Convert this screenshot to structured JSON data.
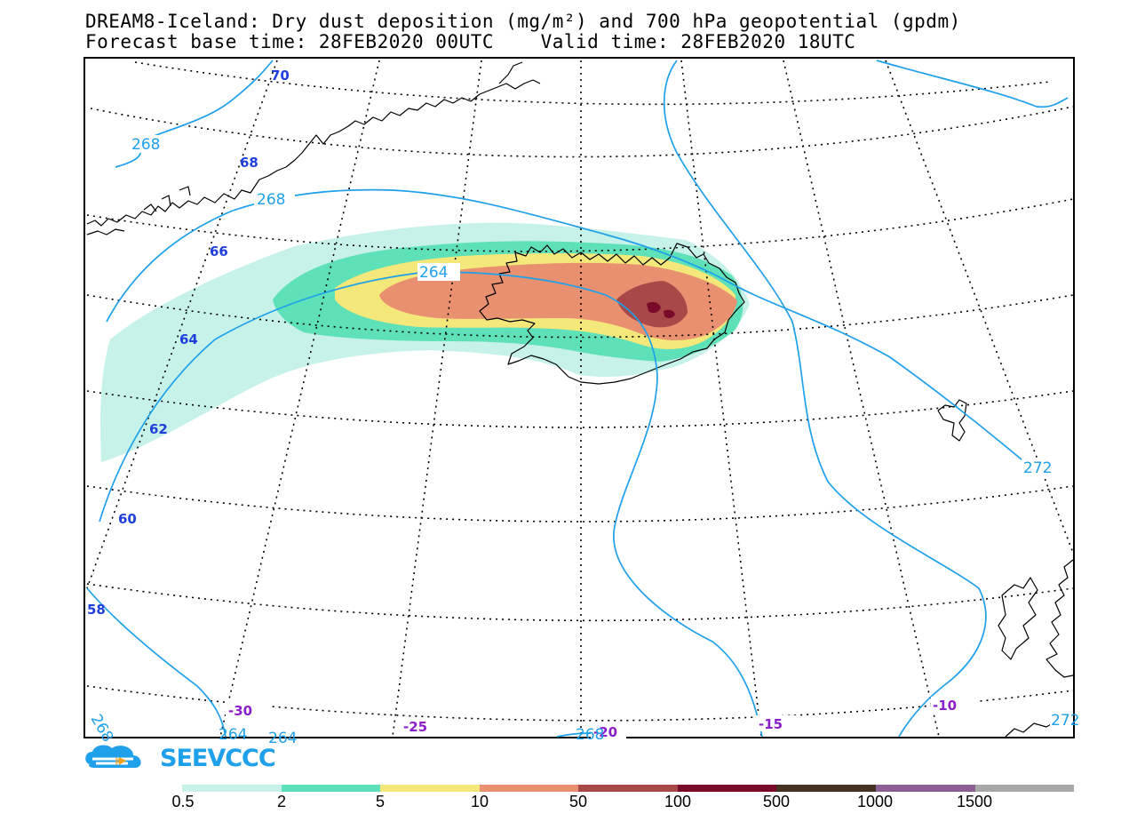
{
  "header": {
    "title_line1": "DREAM8-Iceland: Dry dust deposition (mg/m²) and 700 hPa geopotential (gpdm)",
    "title_line2": "Forecast base time: 28FEB2020 00UTC    Valid time: 28FEB2020 18UTC"
  },
  "map": {
    "latitude_labels": [
      "70",
      "68",
      "66",
      "64",
      "62",
      "60",
      "58"
    ],
    "longitude_labels": [
      "-30",
      "-25",
      "-20",
      "-15",
      "-10"
    ],
    "geopotential_labels": [
      "268",
      "268",
      "264",
      "272",
      "272",
      "268",
      "264",
      "264",
      "268"
    ],
    "contour_color": "#1ea0ea",
    "coast_color": "#000000"
  },
  "logo": {
    "text": "SEEVCCC",
    "color": "#1ea0ea",
    "accent": "#f3a21b"
  },
  "legend": {
    "colors": [
      "#c6f2ea",
      "#5ee0b8",
      "#f5e87a",
      "#e99070",
      "#a84848",
      "#7a0a2a",
      "#463220",
      "#8c5e96",
      "#a8a8a8"
    ],
    "labels": [
      "0.5",
      "2",
      "5",
      "10",
      "50",
      "100",
      "500",
      "1000",
      "1500"
    ]
  }
}
